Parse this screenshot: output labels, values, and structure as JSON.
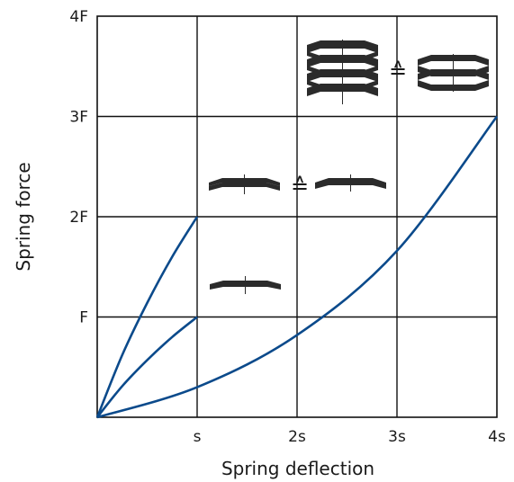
{
  "chart_data": {
    "type": "line",
    "xlabel": "Spring deflection",
    "ylabel": "Spring force",
    "xlim": [
      0,
      4
    ],
    "ylim": [
      0,
      4
    ],
    "x_ticks": [
      {
        "value": 1,
        "label": "s"
      },
      {
        "value": 2,
        "label": "2s"
      },
      {
        "value": 3,
        "label": "3s"
      },
      {
        "value": 4,
        "label": "4s"
      }
    ],
    "y_ticks": [
      {
        "value": 1,
        "label": "F"
      },
      {
        "value": 2,
        "label": "2F"
      },
      {
        "value": 3,
        "label": "3F"
      },
      {
        "value": 4,
        "label": "4F"
      }
    ],
    "grid": true,
    "series": [
      {
        "values": [
          [
            0,
            0
          ],
          [
            0.25,
            0.62
          ],
          [
            0.5,
            1.14
          ],
          [
            0.75,
            1.6
          ],
          [
            1,
            2
          ]
        ]
      },
      {
        "values": [
          [
            0,
            0
          ],
          [
            0.25,
            0.31
          ],
          [
            0.5,
            0.57
          ],
          [
            0.75,
            0.8
          ],
          [
            1,
            1
          ]
        ]
      },
      {
        "values": [
          [
            0,
            0
          ],
          [
            1,
            0.3
          ],
          [
            2,
            0.82
          ],
          [
            3,
            1.66
          ],
          [
            4,
            3
          ]
        ]
      }
    ],
    "annotations": [
      {
        "type": "icon",
        "name": "single-disc-spring-icon",
        "text": ""
      },
      {
        "type": "icon",
        "name": "parallel-disc-spring-pair-icon",
        "text": "≙"
      },
      {
        "type": "icon",
        "name": "stacked-disc-spring-column-icon",
        "text": "≙"
      }
    ]
  },
  "colors": {
    "curve": "#0b4a8b",
    "grid": "#111111",
    "washer": "#2b2b2b"
  }
}
